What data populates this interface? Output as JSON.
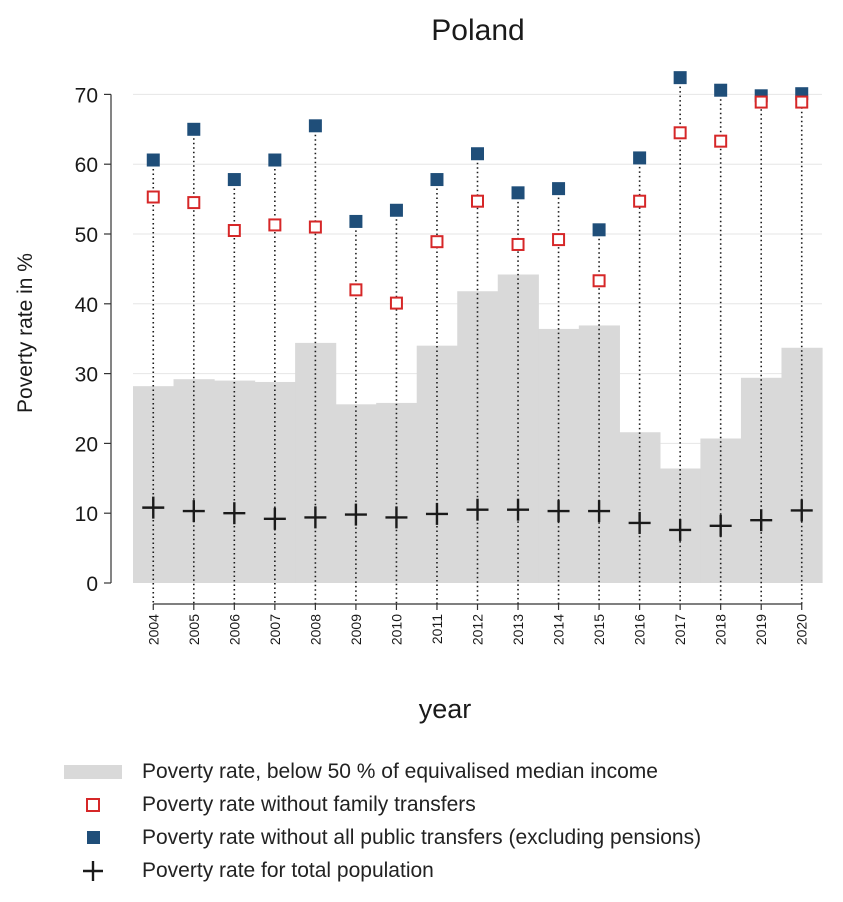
{
  "chart_data": {
    "type": "bar",
    "title": "Poland",
    "xlabel": "year",
    "ylabel": "Poverty rate in %",
    "ylim": [
      0,
      73
    ],
    "yticks": [
      0,
      10,
      20,
      30,
      40,
      50,
      60,
      70
    ],
    "grid": true,
    "legend_position": "bottom",
    "categories": [
      "2004",
      "2005",
      "2006",
      "2007",
      "2008",
      "2009",
      "2010",
      "2011",
      "2012",
      "2013",
      "2014",
      "2015",
      "2016",
      "2017",
      "2018",
      "2019",
      "2020"
    ],
    "series": [
      {
        "name": "Poverty rate, below 50 % of equivalised median income",
        "kind": "bar",
        "color": "#d9d9d9",
        "values": [
          28.2,
          29.2,
          29.0,
          28.8,
          34.4,
          25.6,
          25.8,
          34.0,
          41.8,
          44.2,
          36.4,
          36.9,
          21.6,
          16.4,
          20.7,
          29.4,
          33.7
        ]
      },
      {
        "name": "Poverty rate without family transfers",
        "kind": "open-square",
        "color": "#d62728",
        "values": [
          55.3,
          54.5,
          50.5,
          51.3,
          51.0,
          42.0,
          40.1,
          48.9,
          54.7,
          48.5,
          49.2,
          43.3,
          54.7,
          64.5,
          63.3,
          68.9,
          68.9
        ]
      },
      {
        "name": "Poverty rate without all public transfers (excluding pensions)",
        "kind": "filled-square",
        "color": "#1f4e79",
        "values": [
          60.6,
          65.0,
          57.8,
          60.6,
          65.5,
          51.8,
          53.4,
          57.8,
          61.5,
          55.9,
          56.5,
          50.6,
          60.9,
          72.4,
          70.6,
          69.8,
          70.1
        ]
      },
      {
        "name": "Poverty rate for total population",
        "kind": "plus",
        "color": "#1a1a1a",
        "values": [
          10.8,
          10.3,
          10.0,
          9.2,
          9.4,
          9.8,
          9.4,
          9.9,
          10.5,
          10.5,
          10.3,
          10.3,
          8.6,
          7.6,
          8.2,
          9.0,
          10.4
        ]
      }
    ]
  }
}
